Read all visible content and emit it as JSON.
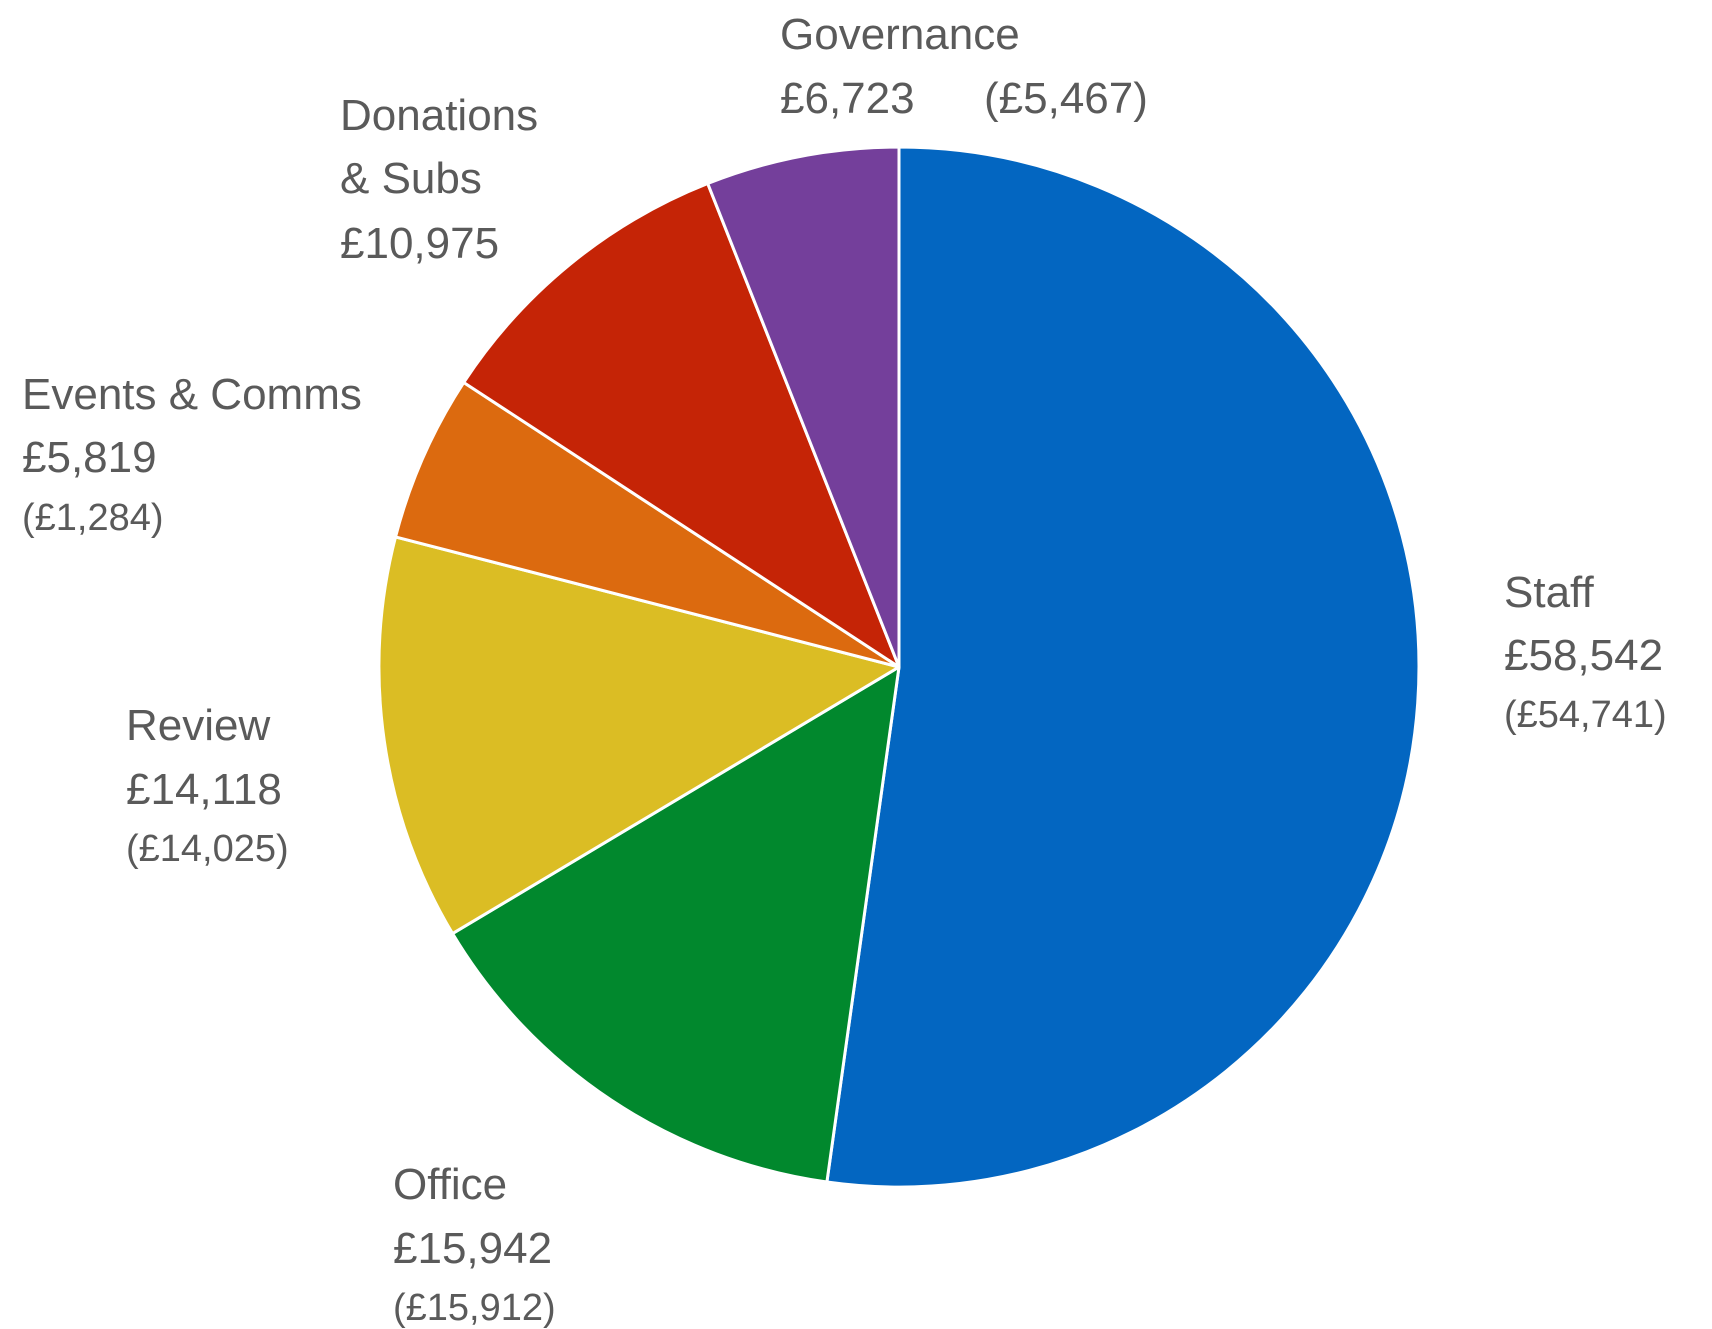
{
  "chart_data": {
    "type": "pie",
    "start_angle": "12 o'clock",
    "direction": "clockwise",
    "slices": [
      {
        "label": "Staff",
        "value": 58542,
        "value_text": "£58,542",
        "prior_text": "(£54,741)",
        "color": "#0366c1"
      },
      {
        "label": "Office",
        "value": 15942,
        "value_text": "£15,942",
        "prior_text": "(£15,912)",
        "color": "#01882d"
      },
      {
        "label": "Review",
        "value": 14118,
        "value_text": "£14,118",
        "prior_text": "(£14,025)",
        "color": "#dbbd24"
      },
      {
        "label": "Events & Comms",
        "value": 5819,
        "value_text": "£5,819",
        "prior_text": "(£1,284)",
        "color": "#dc6a0f"
      },
      {
        "label": "Donations & Subs",
        "value": 10975,
        "value_text": "£10,975",
        "prior_text": "",
        "color": "#c52406"
      },
      {
        "label": "Governance",
        "value": 6723,
        "value_text": "£6,723",
        "prior_text": "(£5,467)",
        "color": "#743f9b"
      }
    ]
  }
}
